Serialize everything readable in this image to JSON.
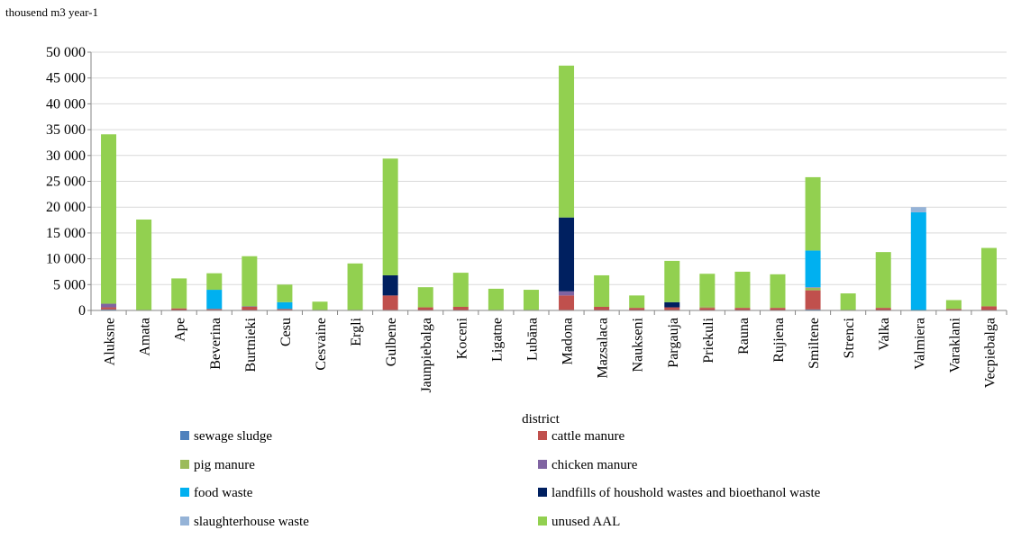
{
  "chart_data": {
    "type": "bar",
    "stacked": true,
    "unit_label": "thousend m3 year-1",
    "xlabel": "district",
    "ylim": [
      0,
      50000
    ],
    "y_ticks": [
      "0",
      "5 000",
      "10 000",
      "15 000",
      "20 000",
      "25 000",
      "30 000",
      "35 000",
      "40 000",
      "45 000",
      "50 000"
    ],
    "grid": "horizontal",
    "legend_position": "bottom",
    "categories": [
      "Aluksne",
      "Amata",
      "Ape",
      "Beverina",
      "Burtnieki",
      "Cesu",
      "Cesvaine",
      "Ergli",
      "Gulbene",
      "Jaunpiebalga",
      "Koceni",
      "Ligatne",
      "Lubāna",
      "Madona",
      "Mazsalaca",
      "Naukseni",
      "Pargauja",
      "Priekuli",
      "Rauna",
      "Rujiena",
      "Smiltene",
      "Strenci",
      "Valka",
      "Valmiera",
      "Varaklani",
      "Vecpiebalga"
    ],
    "series": [
      {
        "name": "sewage sludge",
        "color": "#4F81BD",
        "values": [
          200,
          0,
          0,
          100,
          0,
          100,
          0,
          0,
          100,
          0,
          0,
          0,
          0,
          100,
          0,
          0,
          0,
          0,
          0,
          0,
          200,
          0,
          0,
          0,
          0,
          0
        ]
      },
      {
        "name": "cattle manure",
        "color": "#C0504D",
        "values": [
          400,
          100,
          400,
          200,
          700,
          200,
          100,
          100,
          2800,
          600,
          700,
          100,
          100,
          2800,
          700,
          500,
          600,
          500,
          500,
          500,
          3700,
          100,
          500,
          0,
          300,
          800
        ]
      },
      {
        "name": "pig manure",
        "color": "#9BBB59",
        "values": [
          0,
          0,
          0,
          0,
          0,
          0,
          0,
          0,
          0,
          0,
          0,
          0,
          0,
          0,
          0,
          0,
          0,
          300,
          0,
          0,
          500,
          0,
          0,
          0,
          0,
          0
        ]
      },
      {
        "name": "chicken manure",
        "color": "#8064A2",
        "values": [
          700,
          0,
          0,
          0,
          100,
          0,
          0,
          0,
          0,
          0,
          0,
          0,
          0,
          800,
          0,
          0,
          0,
          0,
          0,
          0,
          100,
          0,
          0,
          0,
          0,
          0
        ]
      },
      {
        "name": "food waste",
        "color": "#00B0F0",
        "values": [
          0,
          0,
          0,
          3700,
          0,
          1300,
          0,
          0,
          0,
          0,
          0,
          0,
          0,
          0,
          0,
          0,
          0,
          0,
          0,
          0,
          7100,
          0,
          0,
          19000,
          0,
          0
        ]
      },
      {
        "name": "landfills of houshold wastes and bioethanol waste",
        "color": "#002060",
        "values": [
          0,
          0,
          0,
          0,
          0,
          0,
          0,
          0,
          3900,
          0,
          0,
          0,
          0,
          14300,
          0,
          0,
          1000,
          0,
          0,
          0,
          0,
          0,
          0,
          0,
          0,
          0
        ]
      },
      {
        "name": "slaughterhouse waste",
        "color": "#95B3D7",
        "values": [
          0,
          0,
          0,
          0,
          0,
          0,
          0,
          0,
          0,
          0,
          0,
          0,
          0,
          0,
          0,
          0,
          0,
          0,
          0,
          0,
          0,
          0,
          0,
          1000,
          0,
          0
        ]
      },
      {
        "name": "unused AAL",
        "color": "#92D050",
        "values": [
          32800,
          17500,
          5800,
          3200,
          9700,
          3400,
          1600,
          9000,
          22600,
          3900,
          6600,
          4100,
          3900,
          29400,
          6100,
          2400,
          8000,
          6300,
          7000,
          6500,
          14200,
          3200,
          10800,
          0,
          1700,
          11300
        ]
      }
    ]
  }
}
